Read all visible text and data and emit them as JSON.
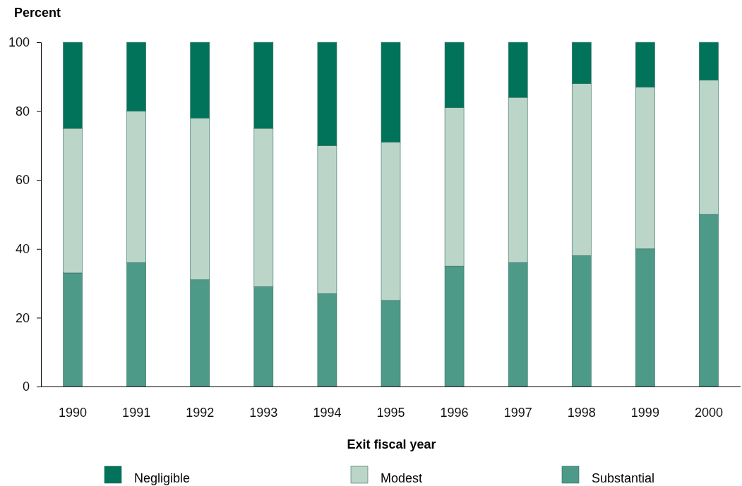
{
  "chart_data": {
    "type": "bar",
    "stacked": true,
    "ylabel": "Percent",
    "xlabel": "Exit fiscal year",
    "categories": [
      "1990",
      "1991",
      "1992",
      "1993",
      "1994",
      "1995",
      "1996",
      "1997",
      "1998",
      "1999",
      "2000"
    ],
    "series": [
      {
        "name": "Substantial",
        "color": "#4e9a89",
        "values": [
          33,
          36,
          31,
          29,
          27,
          25,
          35,
          36,
          38,
          40,
          50
        ]
      },
      {
        "name": "Modest",
        "color": "#bcd5c9",
        "values": [
          42,
          44,
          47,
          46,
          43,
          46,
          46,
          48,
          50,
          47,
          39
        ]
      },
      {
        "name": "Negligible",
        "color": "#00735a",
        "values": [
          25,
          20,
          22,
          25,
          30,
          29,
          19,
          16,
          12,
          13,
          11
        ]
      }
    ],
    "ylim": [
      0,
      100
    ],
    "yticks": [
      0,
      20,
      40,
      60,
      80,
      100
    ],
    "grid": false,
    "legend": "bottom"
  }
}
